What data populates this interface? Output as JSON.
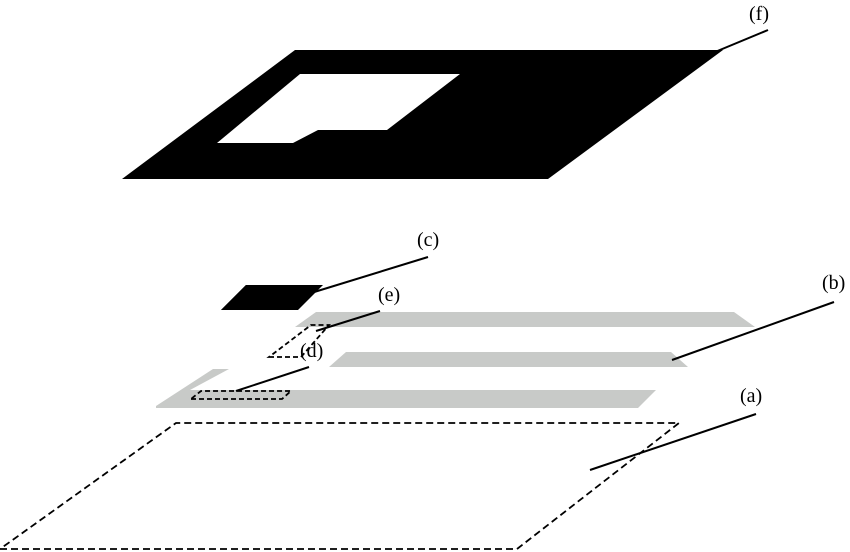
{
  "colors": {
    "ink": "#000000",
    "paper": "#ffffff",
    "gray_strip": "#c8cac8"
  },
  "labels": {
    "a": "(a)",
    "b": "(b)",
    "c": "(c)",
    "d": "(d)",
    "e": "(e)",
    "f": "(f)"
  }
}
